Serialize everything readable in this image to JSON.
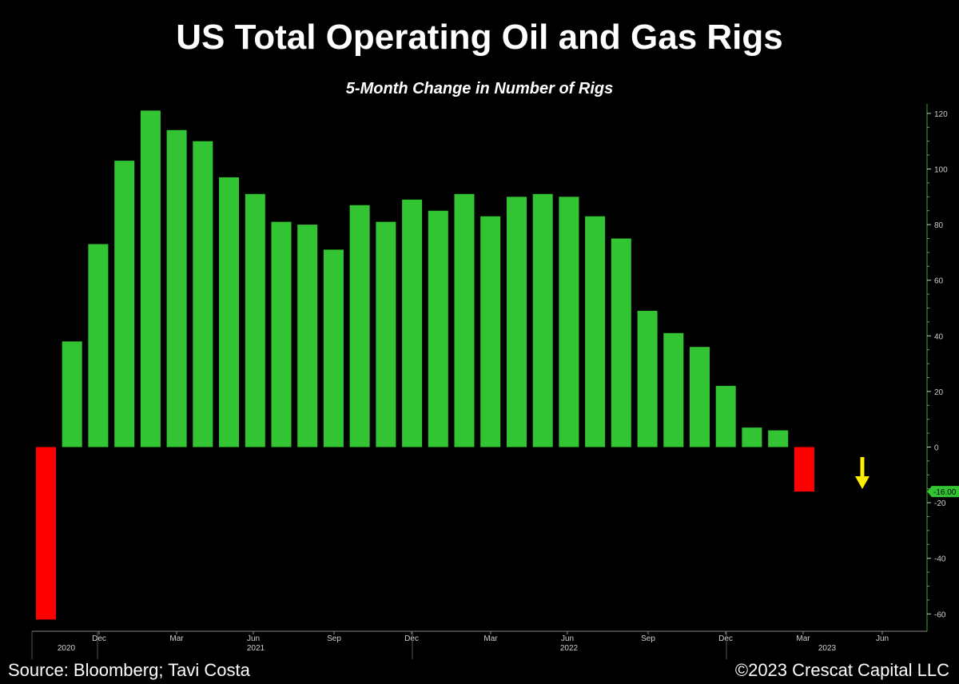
{
  "title": "US Total Operating Oil and Gas Rigs",
  "subtitle": "5-Month Change in Number of Rigs",
  "footer": {
    "source": "Source: Bloomberg; Tavi Costa",
    "copyright": "©2023 Crescat Capital LLC"
  },
  "chart_data": {
    "type": "bar",
    "ylim": [
      -65,
      125
    ],
    "yticks": [
      120,
      100,
      80,
      60,
      40,
      20,
      0,
      -20,
      -40,
      -60
    ],
    "last_value_label": "-16.00",
    "colors": {
      "positive": "#33c433",
      "negative": "#ff0000",
      "arrow": "#ffee00",
      "axis": "#2ea82e"
    },
    "month_labels": [
      "Dec",
      "Mar",
      "Jun",
      "Sep",
      "Dec",
      "Mar",
      "Jun",
      "Sep",
      "Dec",
      "Mar",
      "Jun"
    ],
    "year_labels": [
      "2020",
      "2021",
      "2022",
      "2023"
    ],
    "values": [
      -62,
      38,
      73,
      103,
      121,
      114,
      110,
      97,
      91,
      81,
      80,
      71,
      87,
      81,
      89,
      85,
      91,
      83,
      90,
      91,
      90,
      83,
      75,
      49,
      41,
      36,
      22,
      7,
      6,
      -16
    ]
  }
}
